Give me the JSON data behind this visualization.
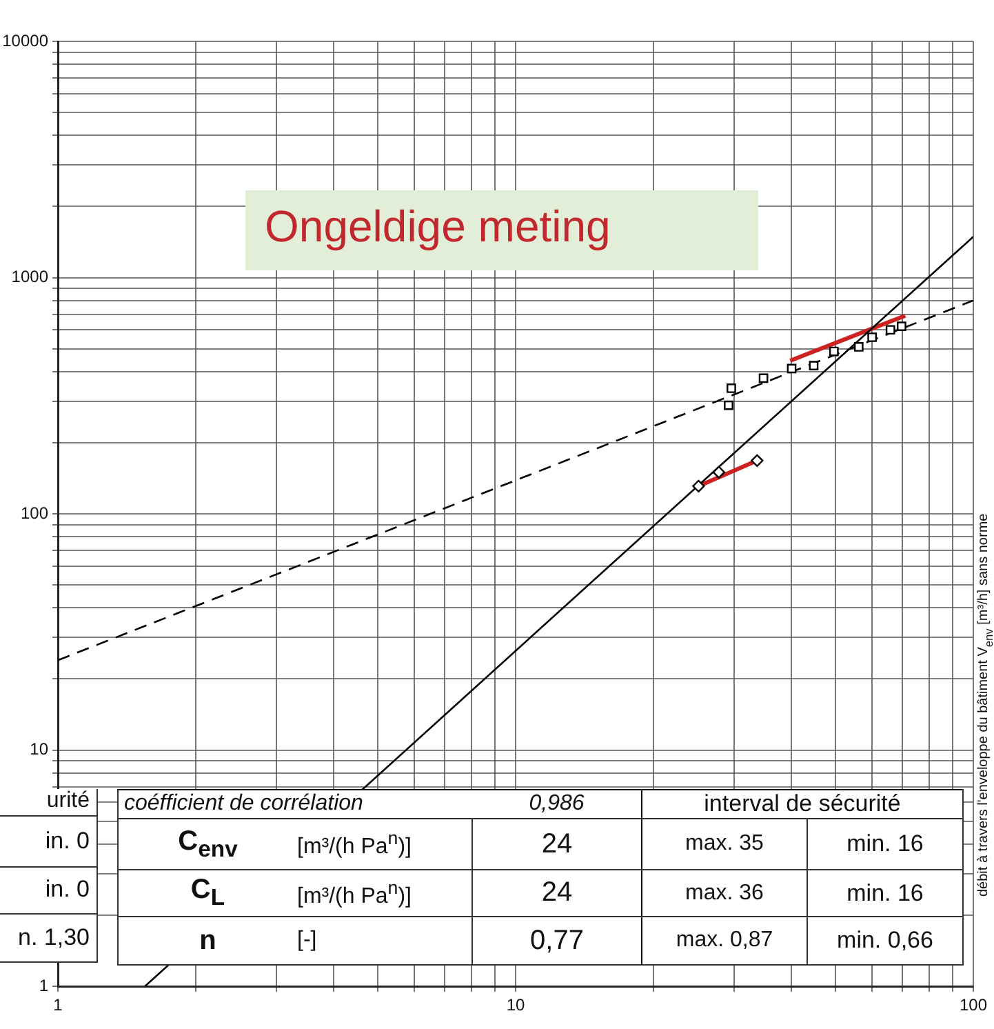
{
  "chart_data": {
    "type": "scatter",
    "log": "xy",
    "grid": true,
    "legend": false,
    "y2label": "débit à travers l'enveloppe du bâtiment V$_{env}$ [m³/h] sans norme",
    "xlim": [
      1,
      100
    ],
    "xticks": [
      1,
      {
        "value": 2,
        "label": null
      },
      {
        "value": 3,
        "label": null
      },
      {
        "value": 4,
        "label": null
      },
      {
        "value": 5,
        "label": null
      },
      {
        "value": 6,
        "label": null
      },
      {
        "value": 7,
        "label": null
      },
      {
        "value": 8,
        "label": null
      },
      {
        "value": 9,
        "label": null
      },
      10,
      {
        "value": 20,
        "label": null
      },
      {
        "value": 30,
        "label": null
      },
      {
        "value": 40,
        "label": null
      },
      {
        "value": 50,
        "label": null
      },
      {
        "value": 60,
        "label": null
      },
      {
        "value": 70,
        "label": null
      },
      {
        "value": 80,
        "label": null
      },
      {
        "value": 90,
        "label": null
      },
      100
    ],
    "ylim": [
      1,
      10000
    ],
    "yticks": [
      1,
      {
        "value": 2,
        "label": null
      },
      {
        "value": 3,
        "label": null
      },
      {
        "value": 4,
        "label": null
      },
      {
        "value": 5,
        "label": null
      },
      {
        "value": 6,
        "label": null
      },
      {
        "value": 7,
        "label": null
      },
      {
        "value": 8,
        "label": null
      },
      {
        "value": 9,
        "label": null
      },
      10,
      {
        "value": 20,
        "label": null
      },
      {
        "value": 30,
        "label": null
      },
      {
        "value": 40,
        "label": null
      },
      {
        "value": 50,
        "label": null
      },
      {
        "value": 60,
        "label": null
      },
      {
        "value": 70,
        "label": null
      },
      {
        "value": 80,
        "label": null
      },
      {
        "value": 90,
        "label": null
      },
      100,
      {
        "value": 200,
        "label": null
      },
      {
        "value": 300,
        "label": null
      },
      {
        "value": 400,
        "label": null
      },
      {
        "value": 500,
        "label": null
      },
      {
        "value": 600,
        "label": null
      },
      {
        "value": 700,
        "label": null
      },
      {
        "value": 800,
        "label": null
      },
      {
        "value": 900,
        "label": null
      },
      1000,
      {
        "value": 2000,
        "label": null
      },
      {
        "value": 3000,
        "label": null
      },
      {
        "value": 4000,
        "label": null
      },
      {
        "value": 5000,
        "label": null
      },
      {
        "value": 6000,
        "label": null
      },
      {
        "value": 7000,
        "label": null
      },
      {
        "value": 8000,
        "label": null
      },
      {
        "value": 9000,
        "label": null
      },
      10000
    ],
    "series": [
      {
        "type": "scatter",
        "marker": "square",
        "color": "#000000",
        "x": [
          29.6,
          29.2,
          34.8,
          40.1,
          44.8,
          49.6,
          56.2,
          60.1,
          65.9,
          69.7
        ],
        "values": [
          340,
          288,
          375,
          412,
          424,
          487,
          509,
          559,
          601,
          622
        ]
      },
      {
        "type": "scatter",
        "marker": "diamond",
        "color": "#000000",
        "x": [
          25.1,
          27.8,
          33.7
        ],
        "values": [
          131,
          150,
          168
        ]
      },
      {
        "type": "line",
        "marker": "none",
        "line_style": "dashed",
        "color": "#000000",
        "x": [
          1,
          100
        ],
        "values": [
          24,
          800
        ]
      },
      {
        "type": "line",
        "marker": "none",
        "line_style": "solid",
        "color": "#000000",
        "x": [
          1.55,
          100
        ],
        "values": [
          1,
          1490
        ]
      },
      {
        "type": "line",
        "marker": "none",
        "line_style": "solid",
        "color": "#cc2222",
        "x": [
          39.8,
          71.0
        ],
        "values": [
          445,
          690
        ]
      },
      {
        "type": "line",
        "marker": "none",
        "line_style": "solid",
        "color": "#cc2222",
        "x": [
          25.1,
          33.7
        ],
        "values": [
          131,
          168
        ]
      }
    ],
    "annotations": [
      "Ongeldige meting",
      "urité",
      "in. 0",
      "in. 0",
      "n. 1,30",
      "coéfficient de corrélation",
      "0,986",
      "interval de sécurité",
      "C$_{env}$",
      "[m³/(h Pa$^{n}$)]",
      "24",
      "max. 35",
      "min. 16",
      "C$_{L}$",
      "[m³/(h Pa$^{n}$)]",
      "24",
      "max. 36",
      "min. 16",
      "n",
      "[-]",
      "0,77",
      "max. 0,87",
      "min. 0,66"
    ]
  }
}
